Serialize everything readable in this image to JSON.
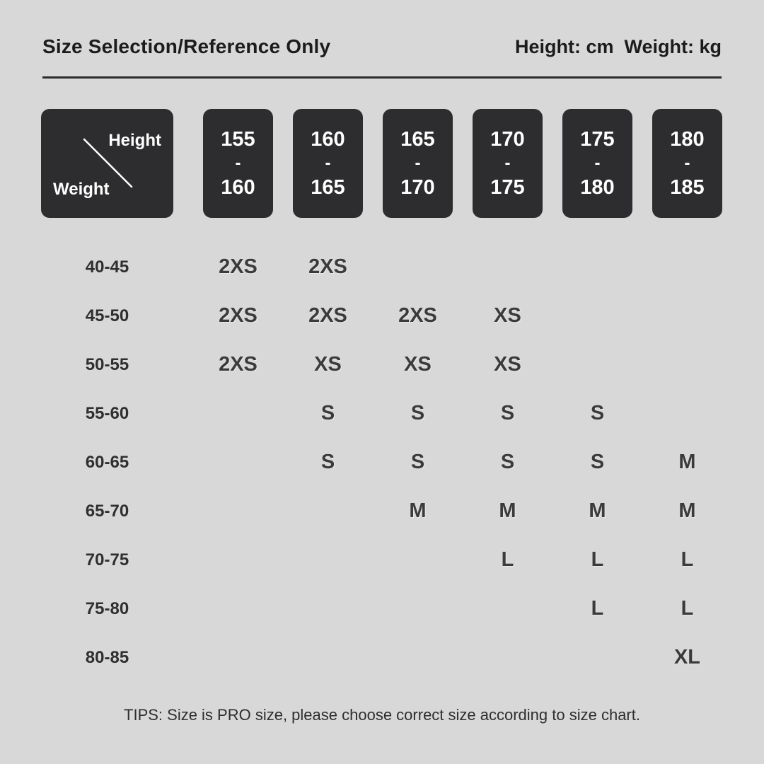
{
  "page": {
    "background_color": "#d8d8d8",
    "box_color": "#2d2d2f",
    "title": "Size Selection/Reference Only",
    "units_note": "Height: cm  Weight: kg",
    "tips": "TIPS: Size is PRO size, please choose correct size according to size chart."
  },
  "table": {
    "corner": {
      "height_label": "Height",
      "weight_label": "Weight"
    },
    "height_columns": [
      {
        "from": "155",
        "sep": "-",
        "to": "160"
      },
      {
        "from": "160",
        "sep": "-",
        "to": "165"
      },
      {
        "from": "165",
        "sep": "-",
        "to": "170"
      },
      {
        "from": "170",
        "sep": "-",
        "to": "175"
      },
      {
        "from": "175",
        "sep": "-",
        "to": "180"
      },
      {
        "from": "180",
        "sep": "-",
        "to": "185"
      }
    ],
    "rows": [
      {
        "weight": "40-45",
        "sizes": [
          "2XS",
          "2XS",
          "",
          "",
          "",
          ""
        ]
      },
      {
        "weight": "45-50",
        "sizes": [
          "2XS",
          "2XS",
          "2XS",
          "XS",
          "",
          ""
        ]
      },
      {
        "weight": "50-55",
        "sizes": [
          "2XS",
          "XS",
          "XS",
          "XS",
          "",
          ""
        ]
      },
      {
        "weight": "55-60",
        "sizes": [
          "",
          "S",
          "S",
          "S",
          "S",
          ""
        ]
      },
      {
        "weight": "60-65",
        "sizes": [
          "",
          "S",
          "S",
          "S",
          "S",
          "M"
        ]
      },
      {
        "weight": "65-70",
        "sizes": [
          "",
          "",
          "M",
          "M",
          "M",
          "M"
        ]
      },
      {
        "weight": "70-75",
        "sizes": [
          "",
          "",
          "",
          "L",
          "L",
          "L"
        ]
      },
      {
        "weight": "75-80",
        "sizes": [
          "",
          "",
          "",
          "",
          "L",
          "L"
        ]
      },
      {
        "weight": "80-85",
        "sizes": [
          "",
          "",
          "",
          "",
          "",
          "XL"
        ]
      }
    ]
  },
  "chart_data": {
    "type": "table",
    "title": "Size Selection/Reference Only",
    "units": {
      "height": "cm",
      "weight": "kg"
    },
    "column_header": "Height",
    "row_header": "Weight",
    "columns": [
      "155-160",
      "160-165",
      "165-170",
      "170-175",
      "175-180",
      "180-185"
    ],
    "rows": [
      "40-45",
      "45-50",
      "50-55",
      "55-60",
      "60-65",
      "65-70",
      "70-75",
      "75-80",
      "80-85"
    ],
    "cells": [
      [
        "2XS",
        "2XS",
        "",
        "",
        "",
        ""
      ],
      [
        "2XS",
        "2XS",
        "2XS",
        "XS",
        "",
        ""
      ],
      [
        "2XS",
        "XS",
        "XS",
        "XS",
        "",
        ""
      ],
      [
        "",
        "S",
        "S",
        "S",
        "S",
        ""
      ],
      [
        "",
        "S",
        "S",
        "S",
        "S",
        "M"
      ],
      [
        "",
        "",
        "M",
        "M",
        "M",
        "M"
      ],
      [
        "",
        "",
        "",
        "L",
        "L",
        "L"
      ],
      [
        "",
        "",
        "",
        "",
        "L",
        "L"
      ],
      [
        "",
        "",
        "",
        "",
        "",
        "XL"
      ]
    ],
    "note": "TIPS: Size is PRO size, please choose correct size according to size chart."
  }
}
